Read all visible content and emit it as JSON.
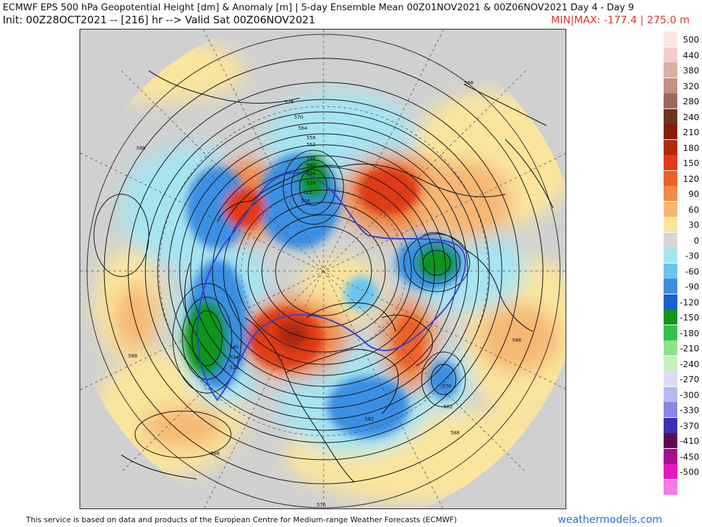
{
  "header": {
    "title": "ECMWF EPS 500 hPa Geopotential Height [dm] & Anomaly [m] | 5-day Ensemble Mean 00Z01NOV2021 & 00Z06NOV2021   Day 4 - Day 9",
    "init": "Init: 00Z28OCT2021 -- [216] hr --> Valid Sat 00Z06NOV2021",
    "minmax": "MIN|MAX: -177.4 | 275.0 m"
  },
  "map": {
    "projection": "polar-stereographic-north",
    "contour_labels": [
      "588",
      "576",
      "570",
      "564",
      "558",
      "552",
      "546",
      "540",
      "534",
      "528",
      "522",
      "516",
      "588",
      "588",
      "588",
      "588",
      "582",
      "576",
      "540",
      "534",
      "528",
      "588",
      "582",
      "576"
    ]
  },
  "legend": {
    "items": [
      {
        "label": "500",
        "color": "#fde4e1"
      },
      {
        "label": "440",
        "color": "#f2cfc8"
      },
      {
        "label": "380",
        "color": "#d9b0a5"
      },
      {
        "label": "320",
        "color": "#bf9283"
      },
      {
        "label": "280",
        "color": "#9b6b5b"
      },
      {
        "label": "240",
        "color": "#6e3324"
      },
      {
        "label": "210",
        "color": "#8a1c0c"
      },
      {
        "label": "180",
        "color": "#b02a10"
      },
      {
        "label": "150",
        "color": "#e03a16"
      },
      {
        "label": "120",
        "color": "#ee5f2a"
      },
      {
        "label": "90",
        "color": "#f28a48"
      },
      {
        "label": "60",
        "color": "#f6b774"
      },
      {
        "label": "30",
        "color": "#fbe59c"
      },
      {
        "label": "0",
        "color": "#d6d6d6"
      },
      {
        "label": "-30",
        "color": "#a6e4f2"
      },
      {
        "label": "-60",
        "color": "#6cc5ef"
      },
      {
        "label": "-90",
        "color": "#3a8fe3"
      },
      {
        "label": "-120",
        "color": "#1d5fcc"
      },
      {
        "label": "-150",
        "color": "#11951f"
      },
      {
        "label": "-180",
        "color": "#36c04a"
      },
      {
        "label": "-210",
        "color": "#8fe28c"
      },
      {
        "label": "-240",
        "color": "#c3f0bd"
      },
      {
        "label": "-270",
        "color": "#dcdcf4"
      },
      {
        "label": "-300",
        "color": "#b8b8ee"
      },
      {
        "label": "-330",
        "color": "#8a86e3"
      },
      {
        "label": "-370",
        "color": "#3d2fb0"
      },
      {
        "label": "-410",
        "color": "#5a0c53"
      },
      {
        "label": "-450",
        "color": "#a80f8e"
      },
      {
        "label": "-500",
        "color": "#e418c4"
      },
      {
        "label": "",
        "color": "#f47ae6"
      }
    ]
  },
  "footer": {
    "text": "This service is based on data and products of the European Centre for Medium-range Weather Forecasts (ECMWF)",
    "brand": "weathermodels.com"
  }
}
